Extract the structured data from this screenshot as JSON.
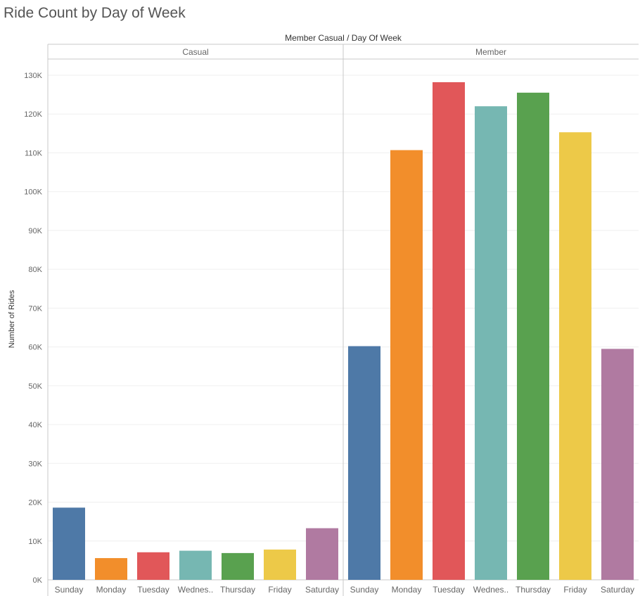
{
  "chart_data": {
    "type": "bar",
    "title": "Ride Count by Day of Week",
    "header_label": "Member Casual  /  Day Of Week",
    "ylabel": "Number of Rides",
    "ylim": [
      0,
      135000
    ],
    "y_ticks": [
      0,
      10000,
      20000,
      30000,
      40000,
      50000,
      60000,
      70000,
      80000,
      90000,
      100000,
      110000,
      120000,
      130000
    ],
    "y_tick_labels": [
      "0K",
      "10K",
      "20K",
      "30K",
      "40K",
      "50K",
      "60K",
      "70K",
      "80K",
      "90K",
      "100K",
      "110K",
      "120K",
      "130K"
    ],
    "grid": true,
    "categories": [
      "Sunday",
      "Monday",
      "Tuesday",
      "Wednes..",
      "Thursday",
      "Friday",
      "Saturday"
    ],
    "category_colors": [
      "#4e79a7",
      "#f28e2b",
      "#e15759",
      "#76b7b2",
      "#59a14f",
      "#edc948",
      "#b07aa1"
    ],
    "panels": [
      {
        "name": "Casual",
        "values": [
          18600,
          5600,
          7100,
          7500,
          6900,
          7800,
          13300
        ]
      },
      {
        "name": "Member",
        "values": [
          60200,
          110700,
          128200,
          122000,
          125500,
          115300,
          59500
        ]
      }
    ]
  }
}
